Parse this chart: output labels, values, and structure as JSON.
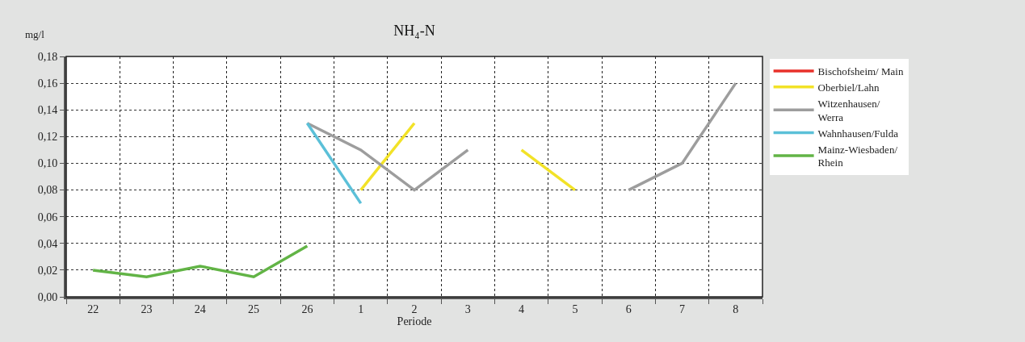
{
  "chart_data": {
    "type": "line",
    "title": "NH₄-N",
    "xlabel": "Periode",
    "ylabel": "mg/l",
    "categories": [
      "22",
      "23",
      "24",
      "25",
      "26",
      "1",
      "2",
      "3",
      "4",
      "5",
      "6",
      "7",
      "8"
    ],
    "series": [
      {
        "name": "Bischofsheim/ Main",
        "color": "#e8312a",
        "values": [
          null,
          null,
          null,
          null,
          null,
          null,
          null,
          null,
          null,
          null,
          null,
          null,
          null
        ]
      },
      {
        "name": "Oberbiel/Lahn",
        "color": "#f2e227",
        "values": [
          null,
          null,
          null,
          null,
          null,
          0.08,
          0.13,
          null,
          0.11,
          0.08,
          null,
          null,
          null
        ]
      },
      {
        "name": "Witzenhausen/\nWerra",
        "color": "#9d9d9d",
        "values": [
          null,
          null,
          null,
          null,
          0.13,
          0.11,
          0.08,
          0.11,
          null,
          null,
          0.08,
          0.1,
          0.16
        ]
      },
      {
        "name": "Wahnhausen/Fulda",
        "color": "#5bc0d8",
        "values": [
          null,
          null,
          null,
          null,
          0.13,
          0.07,
          null,
          null,
          null,
          null,
          null,
          null,
          null
        ]
      },
      {
        "name": "Mainz-Wiesbaden/\nRhein",
        "color": "#62b446",
        "values": [
          0.02,
          0.015,
          0.023,
          0.015,
          0.038,
          null,
          null,
          null,
          null,
          null,
          null,
          null,
          null
        ]
      }
    ],
    "ylim": [
      0,
      0.18
    ],
    "yticks": [
      {
        "value": 0,
        "label": "0,00"
      },
      {
        "value": 0.02,
        "label": "0,02"
      },
      {
        "value": 0.04,
        "label": "0,04"
      },
      {
        "value": 0.06,
        "label": "0,06"
      },
      {
        "value": 0.08,
        "label": "0,08"
      },
      {
        "value": 0.1,
        "label": "0,10"
      },
      {
        "value": 0.12,
        "label": "0,12"
      },
      {
        "value": 0.14,
        "label": "0,14"
      },
      {
        "value": 0.16,
        "label": "0,16"
      },
      {
        "value": 0.18,
        "label": "0,18"
      }
    ],
    "grid": true,
    "legend": "right",
    "marker": "none",
    "line_style": "solid"
  }
}
